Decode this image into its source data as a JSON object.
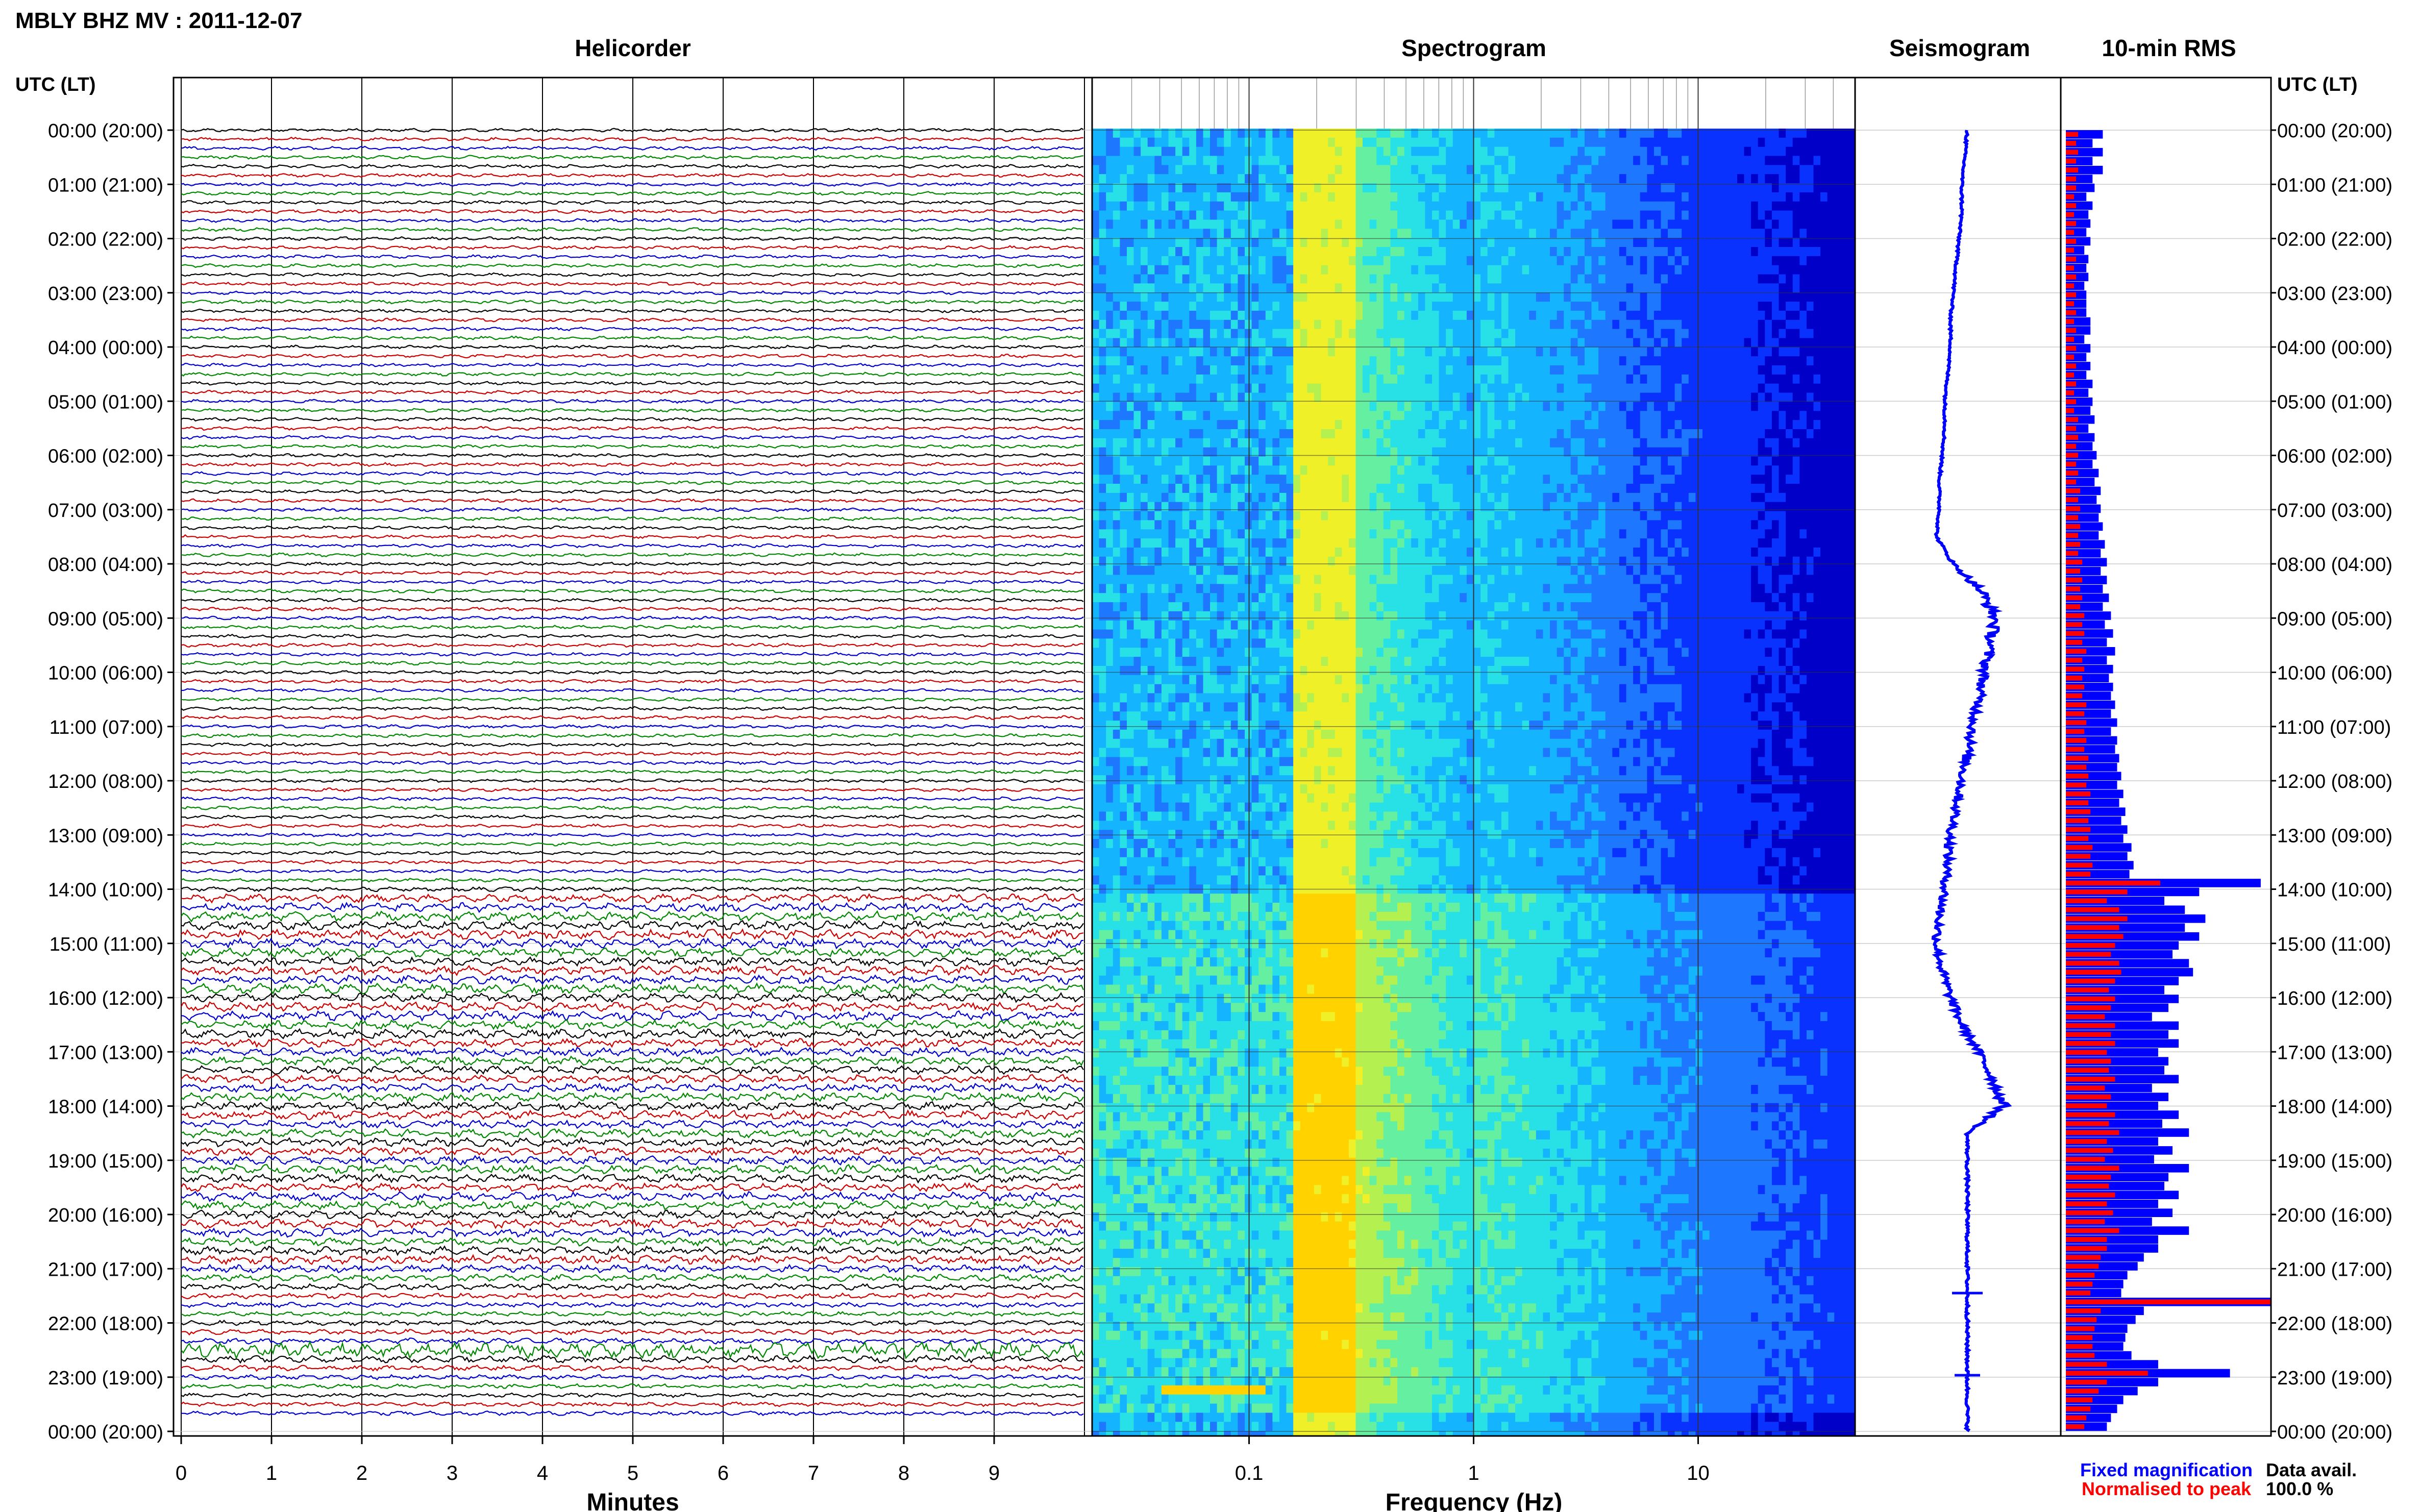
{
  "header": {
    "station_title": "MBLY BHZ MV : 2011-12-07",
    "left_time_label": "UTC (LT)",
    "right_time_label": "UTC (LT)"
  },
  "panels": {
    "helicorder": {
      "title": "Helicorder",
      "xlabel": "Minutes"
    },
    "spectrogram": {
      "title": "Spectrogram",
      "xlabel": "Frequency (Hz)"
    },
    "seismogram": {
      "title": "Seismogram"
    },
    "rms": {
      "title": "10-min RMS"
    }
  },
  "legend": {
    "fixed": "Fixed magnification",
    "normalised": "Normalised to peak",
    "avail_label": "Data avail.",
    "avail_value": "100.0 %"
  },
  "colors": {
    "blue": "#0000ff",
    "red": "#ff0000",
    "trace_colors": [
      "#000000",
      "#cc0000",
      "#0000cc",
      "#008800"
    ],
    "spectrogram_low": "#00008b",
    "spectrogram_high": "#ffff00"
  },
  "chart_data": [
    {
      "type": "line",
      "name": "helicorder",
      "title": "Helicorder",
      "xlabel": "Minutes",
      "x_ticks": [
        "0",
        "1",
        "2",
        "3",
        "4",
        "5",
        "6",
        "7",
        "8",
        "9"
      ],
      "xlim": [
        0,
        10
      ],
      "y_ticks": [
        "00:00 (20:00)",
        "01:00 (21:00)",
        "02:00 (22:00)",
        "03:00 (23:00)",
        "04:00 (00:00)",
        "05:00 (01:00)",
        "06:00 (02:00)",
        "07:00 (03:00)",
        "08:00 (04:00)",
        "09:00 (05:00)",
        "10:00 (06:00)",
        "11:00 (07:00)",
        "12:00 (08:00)",
        "13:00 (09:00)",
        "14:00 (10:00)",
        "15:00 (11:00)",
        "16:00 (12:00)",
        "17:00 (13:00)",
        "18:00 (14:00)",
        "19:00 (15:00)",
        "20:00 (16:00)",
        "21:00 (17:00)",
        "22:00 (18:00)",
        "23:00 (19:00)",
        "00:00 (20:00)"
      ],
      "rows": 144,
      "row_amplitude": [
        1,
        1,
        1,
        1,
        1,
        1,
        1,
        1,
        1,
        1,
        1,
        1,
        1,
        1,
        1,
        1,
        1,
        1,
        1,
        1,
        1,
        1,
        1,
        1,
        1,
        1,
        1,
        1,
        1,
        1,
        1,
        1,
        1,
        1,
        1,
        1,
        1,
        1,
        1,
        1,
        1,
        1,
        1,
        1,
        1,
        1,
        1,
        1,
        1,
        1,
        1,
        1,
        1,
        1,
        1,
        1,
        1,
        1,
        1,
        1,
        1,
        1,
        1,
        1,
        1,
        1,
        1,
        1,
        1,
        1,
        1,
        1,
        1,
        1,
        1,
        1,
        1,
        1,
        1,
        1,
        1,
        1,
        1,
        1,
        1.3,
        2.4,
        2.6,
        2.8,
        2.6,
        2.8,
        2.7,
        2.6,
        2.5,
        2.7,
        2.6,
        2.8,
        2.5,
        2.6,
        2.7,
        2.5,
        2.6,
        2.4,
        2.5,
        2.5,
        2.3,
        2.4,
        2.4,
        2.5,
        2.4,
        2.6,
        2.3,
        2.5,
        2.4,
        2.3,
        2.5,
        2.6,
        2.4,
        2.3,
        2.6,
        2.5,
        2.4,
        2.6,
        2.5,
        2.3,
        2.4,
        2.5,
        2.2,
        2.0,
        1.8,
        1.6,
        1.4,
        1.3,
        1.4,
        1.5,
        1.6,
        4.5,
        2.0,
        1.6,
        1.4,
        1.3,
        1.2,
        1.2,
        1.2
      ]
    },
    {
      "type": "heatmap",
      "name": "spectrogram",
      "title": "Spectrogram",
      "xlabel": "Frequency (Hz)",
      "x_scale": "log",
      "xlim": [
        0.02,
        50
      ],
      "x_ticks": [
        "0.1",
        "1",
        "10"
      ],
      "rows": 144,
      "y_ticks": [
        "00:00 (20:00)",
        "01:00 (21:00)",
        "02:00 (22:00)",
        "03:00 (23:00)",
        "04:00 (00:00)",
        "05:00 (01:00)",
        "06:00 (02:00)",
        "07:00 (03:00)",
        "08:00 (04:00)",
        "09:00 (05:00)",
        "10:00 (06:00)",
        "11:00 (07:00)",
        "12:00 (08:00)",
        "13:00 (09:00)",
        "14:00 (10:00)",
        "15:00 (11:00)",
        "16:00 (12:00)",
        "17:00 (13:00)",
        "18:00 (14:00)",
        "19:00 (15:00)",
        "20:00 (16:00)",
        "21:00 (17:00)",
        "22:00 (18:00)",
        "23:00 (19:00)",
        "00:00 (20:00)"
      ],
      "peak_band_hz": [
        0.15,
        0.3
      ]
    },
    {
      "type": "line",
      "name": "seismogram",
      "title": "Seismogram",
      "orientation": "vertical",
      "offset": [
        0,
        -0.1,
        -0.2,
        -0.2,
        -0.3,
        -0.4,
        -0.5,
        -0.6,
        -0.6,
        -0.7,
        -0.8,
        -0.8,
        -0.9,
        -1.0,
        -1.0,
        -1.1,
        -0.5,
        0.5,
        1.0,
        0.8,
        0.6,
        0.4,
        0.2,
        0.0,
        -0.2,
        -0.4,
        -0.6,
        -0.7,
        -0.8,
        -1.0,
        -1.1,
        -0.9,
        -0.6,
        -0.2,
        0.4,
        0.9,
        1.3,
        0.0,
        0.0,
        0.0,
        0.0,
        0.0,
        0.0,
        0.0,
        0.0,
        0.0,
        0.0,
        0.0,
        0.0
      ],
      "jitter": [
        0.08,
        0.08,
        0.08,
        0.08,
        0.08,
        0.08,
        0.08,
        0.08,
        0.08,
        0.08,
        0.08,
        0.08,
        0.08,
        0.08,
        0.08,
        0.08,
        0.15,
        0.4,
        0.4,
        0.4,
        0.35,
        0.35,
        0.35,
        0.35,
        0.35,
        0.3,
        0.3,
        0.3,
        0.3,
        0.3,
        0.3,
        0.3,
        0.3,
        0.3,
        0.3,
        0.35,
        0.4,
        0.1,
        0.1,
        0.1,
        0.1,
        0.1,
        0.1,
        0.1,
        0.1,
        0.1,
        0.1,
        0.1,
        0.1
      ]
    },
    {
      "type": "bar",
      "name": "rms",
      "title": "10-min RMS",
      "orientation": "horizontal",
      "series": [
        {
          "name": "Fixed magnification",
          "values": [
            0.18,
            0.13,
            0.18,
            0.13,
            0.18,
            0.13,
            0.14,
            0.1,
            0.13,
            0.11,
            0.12,
            0.1,
            0.12,
            0.09,
            0.11,
            0.1,
            0.11,
            0.09,
            0.1,
            0.1,
            0.1,
            0.12,
            0.12,
            0.09,
            0.12,
            0.1,
            0.12,
            0.1,
            0.13,
            0.11,
            0.13,
            0.12,
            0.14,
            0.11,
            0.14,
            0.13,
            0.15,
            0.13,
            0.16,
            0.14,
            0.17,
            0.15,
            0.17,
            0.16,
            0.18,
            0.16,
            0.19,
            0.17,
            0.2,
            0.17,
            0.2,
            0.18,
            0.21,
            0.18,
            0.22,
            0.19,
            0.23,
            0.2,
            0.24,
            0.2,
            0.23,
            0.21,
            0.23,
            0.22,
            0.24,
            0.22,
            0.25,
            0.22,
            0.25,
            0.24,
            0.26,
            0.25,
            0.27,
            0.25,
            0.28,
            0.26,
            0.29,
            0.27,
            0.3,
            0.28,
            0.32,
            0.3,
            0.33,
            0.31,
            0.95,
            0.65,
            0.48,
            0.58,
            0.68,
            0.58,
            0.65,
            0.55,
            0.52,
            0.6,
            0.62,
            0.55,
            0.48,
            0.55,
            0.5,
            0.42,
            0.55,
            0.5,
            0.55,
            0.45,
            0.5,
            0.48,
            0.55,
            0.42,
            0.5,
            0.45,
            0.55,
            0.47,
            0.6,
            0.45,
            0.52,
            0.43,
            0.6,
            0.5,
            0.48,
            0.55,
            0.45,
            0.52,
            0.42,
            0.6,
            0.45,
            0.45,
            0.38,
            0.35,
            0.3,
            0.28,
            0.27,
            1.1,
            0.38,
            0.34,
            0.3,
            0.29,
            0.28,
            0.32,
            0.45,
            0.8,
            0.45,
            0.35,
            0.28,
            0.25,
            0.22,
            0.2
          ]
        },
        {
          "name": "Normalised to peak",
          "values": [
            0.06,
            0.05,
            0.06,
            0.05,
            0.06,
            0.05,
            0.05,
            0.04,
            0.05,
            0.04,
            0.05,
            0.04,
            0.05,
            0.04,
            0.05,
            0.04,
            0.05,
            0.04,
            0.05,
            0.04,
            0.05,
            0.04,
            0.05,
            0.04,
            0.05,
            0.04,
            0.05,
            0.04,
            0.05,
            0.04,
            0.05,
            0.04,
            0.06,
            0.05,
            0.06,
            0.05,
            0.06,
            0.05,
            0.06,
            0.05,
            0.07,
            0.06,
            0.07,
            0.06,
            0.07,
            0.06,
            0.07,
            0.06,
            0.08,
            0.07,
            0.08,
            0.07,
            0.08,
            0.07,
            0.09,
            0.08,
            0.09,
            0.08,
            0.1,
            0.08,
            0.09,
            0.08,
            0.09,
            0.08,
            0.1,
            0.09,
            0.1,
            0.09,
            0.1,
            0.09,
            0.11,
            0.1,
            0.11,
            0.1,
            0.12,
            0.11,
            0.12,
            0.11,
            0.12,
            0.11,
            0.13,
            0.12,
            0.13,
            0.12,
            0.46,
            0.3,
            0.2,
            0.26,
            0.3,
            0.26,
            0.28,
            0.24,
            0.22,
            0.26,
            0.27,
            0.24,
            0.21,
            0.24,
            0.22,
            0.19,
            0.24,
            0.22,
            0.24,
            0.2,
            0.22,
            0.21,
            0.24,
            0.19,
            0.22,
            0.2,
            0.24,
            0.21,
            0.26,
            0.2,
            0.23,
            0.19,
            0.26,
            0.22,
            0.21,
            0.24,
            0.2,
            0.23,
            0.19,
            0.26,
            0.2,
            0.2,
            0.17,
            0.16,
            0.14,
            0.13,
            0.12,
            1.0,
            0.17,
            0.15,
            0.14,
            0.13,
            0.13,
            0.14,
            0.2,
            0.4,
            0.2,
            0.16,
            0.13,
            0.12,
            0.1,
            0.09
          ]
        }
      ],
      "y_ticks": [
        "00:00 (20:00)",
        "01:00 (21:00)",
        "02:00 (22:00)",
        "03:00 (23:00)",
        "04:00 (00:00)",
        "05:00 (01:00)",
        "06:00 (02:00)",
        "07:00 (03:00)",
        "08:00 (04:00)",
        "09:00 (05:00)",
        "10:00 (06:00)",
        "11:00 (07:00)",
        "12:00 (08:00)",
        "13:00 (09:00)",
        "14:00 (10:00)",
        "15:00 (11:00)",
        "16:00 (12:00)",
        "17:00 (13:00)",
        "18:00 (14:00)",
        "19:00 (15:00)",
        "20:00 (16:00)",
        "21:00 (17:00)",
        "22:00 (18:00)",
        "23:00 (19:00)",
        "00:00 (20:00)"
      ]
    }
  ]
}
